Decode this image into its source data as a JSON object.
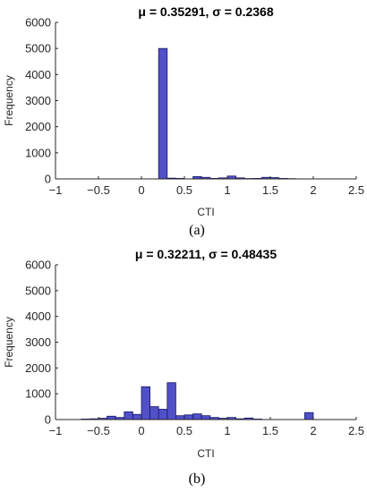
{
  "colors": {
    "bar_fill": "#5050c8",
    "bar_edge": "#1a1a66",
    "axis": "#262626"
  },
  "chart_data": [
    {
      "type": "bar",
      "title": "μ = 0.35291, σ = 0.2368",
      "xlabel": "CTI",
      "ylabel": "Frequency",
      "caption": "(a)",
      "xlim": [
        -1,
        2.5
      ],
      "ylim": [
        0,
        6000
      ],
      "xticks": [
        "-1",
        "-0.5",
        "0",
        "0.5",
        "1",
        "1.5",
        "2",
        "2.5"
      ],
      "yticks": [
        "0",
        "1000",
        "2000",
        "3000",
        "4000",
        "5000",
        "6000"
      ],
      "bin_width": 0.1,
      "bins": [
        {
          "x": 0.2,
          "value": 5000
        },
        {
          "x": 0.3,
          "value": 30
        },
        {
          "x": 0.4,
          "value": 20
        },
        {
          "x": 0.6,
          "value": 90
        },
        {
          "x": 0.7,
          "value": 60
        },
        {
          "x": 0.8,
          "value": 20
        },
        {
          "x": 0.9,
          "value": 40
        },
        {
          "x": 1.0,
          "value": 110
        },
        {
          "x": 1.1,
          "value": 40
        },
        {
          "x": 1.2,
          "value": 15
        },
        {
          "x": 1.3,
          "value": 20
        },
        {
          "x": 1.4,
          "value": 60
        },
        {
          "x": 1.5,
          "value": 50
        },
        {
          "x": 1.6,
          "value": 20
        },
        {
          "x": 1.7,
          "value": 10
        }
      ]
    },
    {
      "type": "bar",
      "title": "μ = 0.32211, σ = 0.48435",
      "xlabel": "CTI",
      "ylabel": "Frequency",
      "caption": "(b)",
      "xlim": [
        -1,
        2.5
      ],
      "ylim": [
        0,
        6000
      ],
      "xticks": [
        "-1",
        "-0.5",
        "0",
        "0.5",
        "1",
        "1.5",
        "2",
        "2.5"
      ],
      "yticks": [
        "0",
        "1000",
        "2000",
        "3000",
        "4000",
        "5000",
        "6000"
      ],
      "bin_width": 0.1,
      "bins": [
        {
          "x": -0.7,
          "value": 20
        },
        {
          "x": -0.6,
          "value": 30
        },
        {
          "x": -0.5,
          "value": 50
        },
        {
          "x": -0.4,
          "value": 130
        },
        {
          "x": -0.3,
          "value": 80
        },
        {
          "x": -0.2,
          "value": 300
        },
        {
          "x": -0.1,
          "value": 200
        },
        {
          "x": 0.0,
          "value": 1270
        },
        {
          "x": 0.1,
          "value": 500
        },
        {
          "x": 0.2,
          "value": 400
        },
        {
          "x": 0.3,
          "value": 1430
        },
        {
          "x": 0.4,
          "value": 150
        },
        {
          "x": 0.5,
          "value": 180
        },
        {
          "x": 0.6,
          "value": 220
        },
        {
          "x": 0.7,
          "value": 150
        },
        {
          "x": 0.8,
          "value": 80
        },
        {
          "x": 0.9,
          "value": 50
        },
        {
          "x": 1.0,
          "value": 80
        },
        {
          "x": 1.1,
          "value": 30
        },
        {
          "x": 1.2,
          "value": 60
        },
        {
          "x": 1.3,
          "value": 20
        },
        {
          "x": 1.9,
          "value": 270
        }
      ]
    }
  ]
}
